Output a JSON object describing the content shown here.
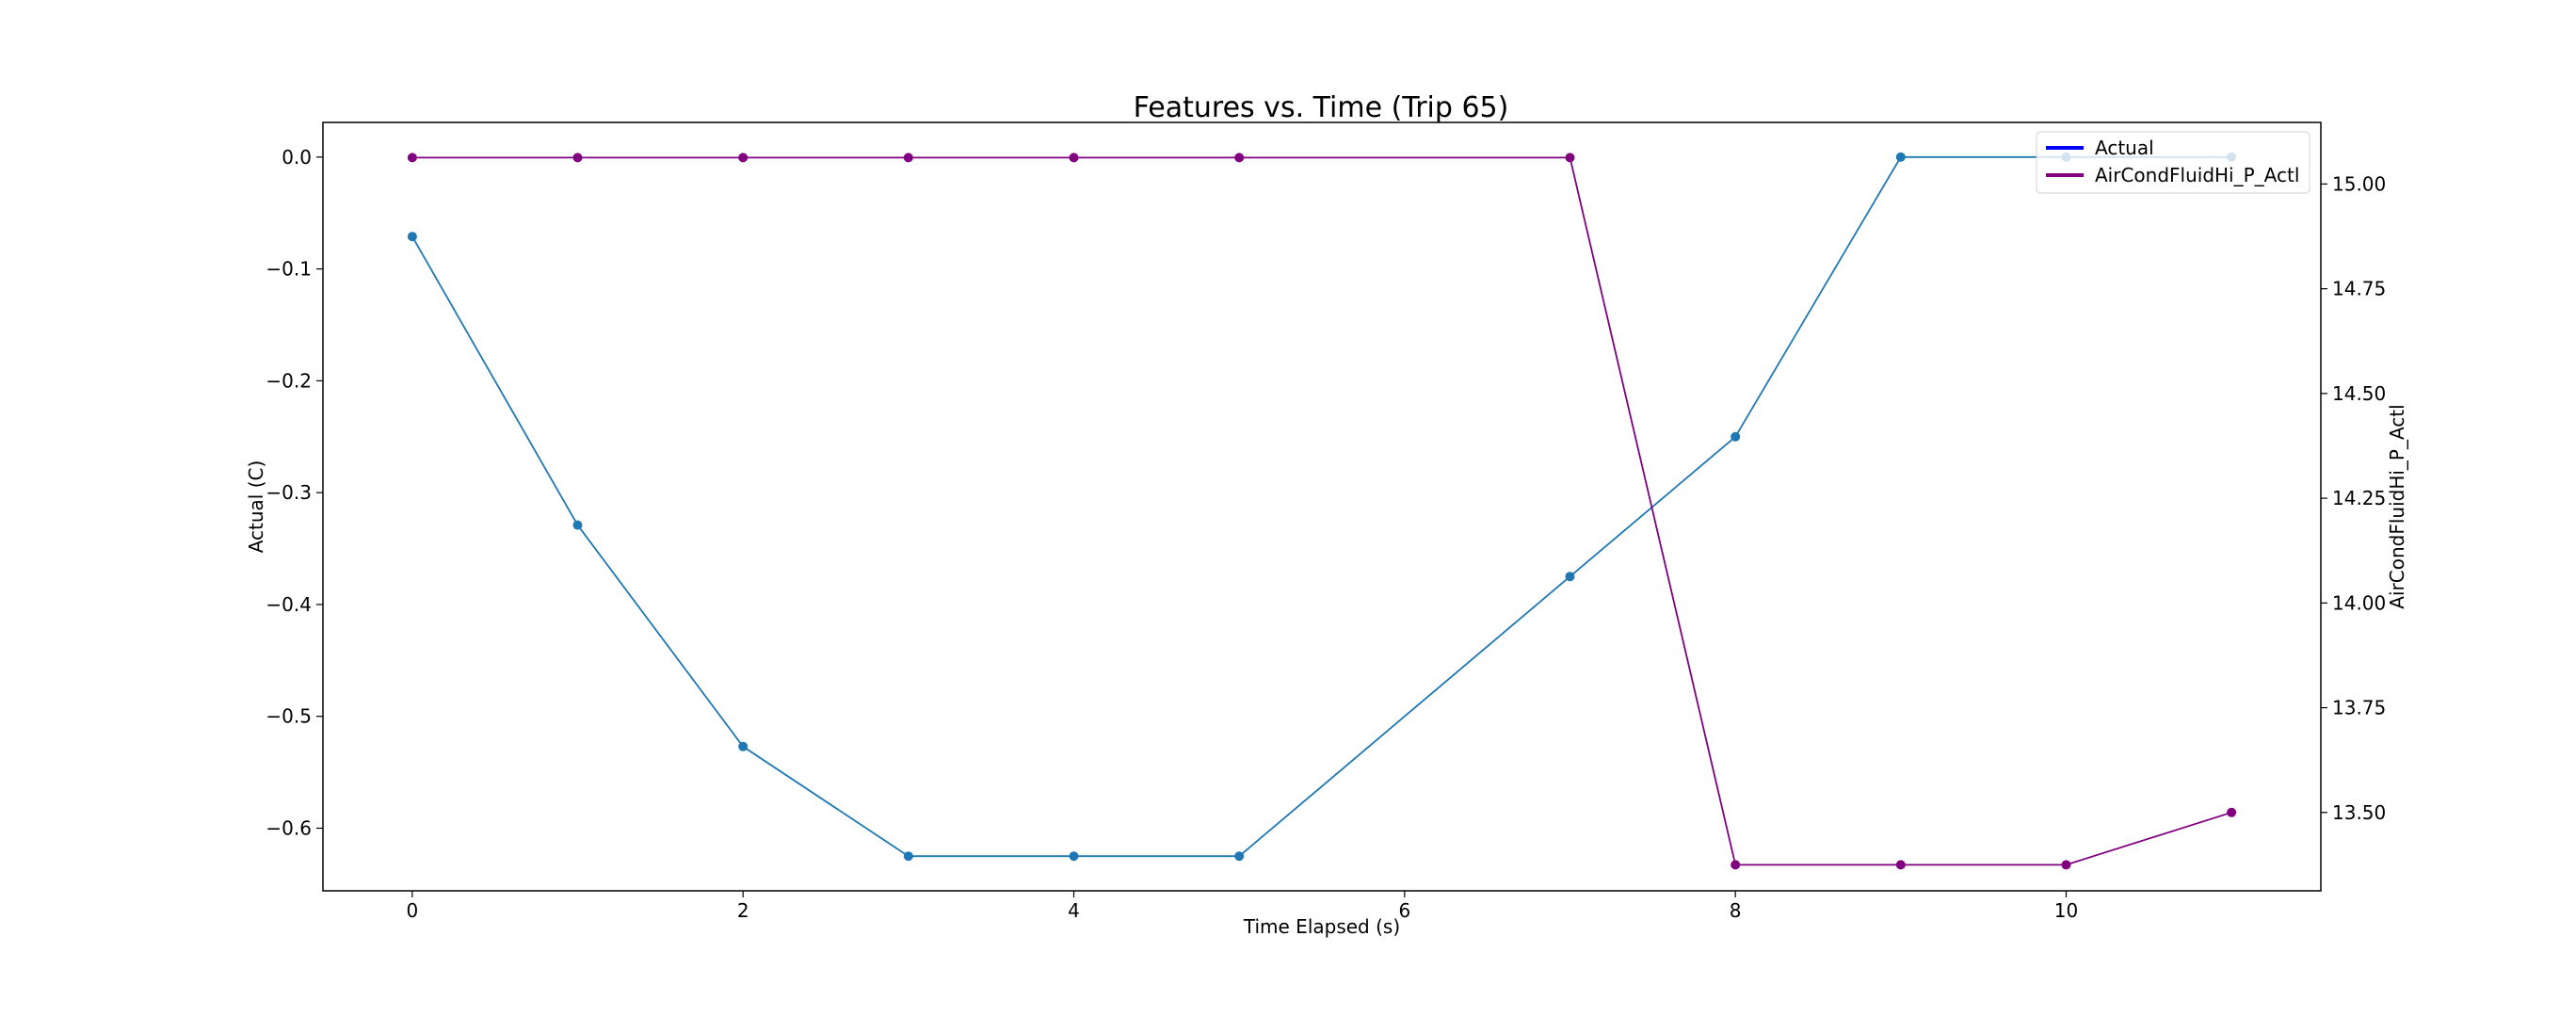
{
  "chart_data": {
    "type": "line",
    "title": "Features vs. Time (Trip 65)",
    "xlabel": "Time Elapsed (s)",
    "ylabel_left": "Actual (C)",
    "ylabel_right": "AirCondFluidHi_P_Actl",
    "xlim": [
      -0.54,
      11.54
    ],
    "ylim_left": [
      -0.656,
      0.031
    ],
    "ylim_right": [
      13.313,
      15.147
    ],
    "x_ticks": [
      0,
      2,
      4,
      6,
      8,
      10
    ],
    "y_ticks_left": [
      0.0,
      -0.1,
      -0.2,
      -0.3,
      -0.4,
      -0.5,
      -0.6
    ],
    "y_ticks_right": [
      15.0,
      14.75,
      14.5,
      14.25,
      14.0,
      13.75,
      13.5
    ],
    "y_tick_labels_left": [
      "0.0",
      "−0.1",
      "−0.2",
      "−0.3",
      "−0.4",
      "−0.5",
      "−0.6"
    ],
    "y_tick_labels_right": [
      "15.00",
      "14.75",
      "14.50",
      "14.25",
      "14.00",
      "13.75",
      "13.50"
    ],
    "grid": false,
    "legend_position": "top-right",
    "series": [
      {
        "name": "Actual",
        "axis": "left",
        "legend_color": "#0000ff",
        "line_color": "#1f77b4",
        "x": [
          0,
          1,
          2,
          3,
          4,
          5,
          7,
          8,
          9,
          10,
          11
        ],
        "values": [
          -0.071,
          -0.329,
          -0.527,
          -0.625,
          -0.625,
          -0.625,
          -0.375,
          -0.25,
          0.0,
          0.0,
          0.0
        ]
      },
      {
        "name": "AirCondFluidHi_P_Actl",
        "axis": "right",
        "legend_color": "#800080",
        "line_color": "#800080",
        "x": [
          0,
          1,
          2,
          3,
          4,
          5,
          7,
          8,
          9,
          10,
          11
        ],
        "values": [
          15.063,
          15.063,
          15.063,
          15.063,
          15.063,
          15.063,
          15.063,
          13.375,
          13.375,
          13.375,
          13.5
        ]
      }
    ]
  }
}
